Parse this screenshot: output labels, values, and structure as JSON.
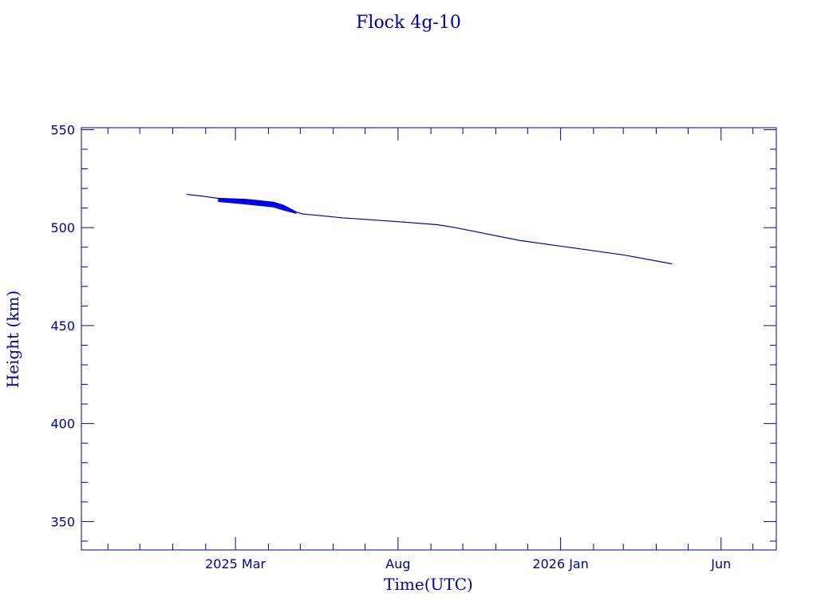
{
  "chart_data": {
    "type": "line",
    "title": "Flock 4g-10",
    "xlabel": "Time(UTC)",
    "ylabel": "Height (km)",
    "x_units": "days since 2025-03-01",
    "xlim": [
      -145,
      509
    ],
    "ylim": [
      335.5,
      551
    ],
    "yticks": [
      350,
      400,
      450,
      500,
      550
    ],
    "ytick_labels": [
      "350",
      "400",
      "450",
      "500",
      "550"
    ],
    "xticks": [
      0,
      153,
      306,
      457
    ],
    "xtick_labels": [
      "2025 Mar",
      "Aug",
      "2026 Jan",
      "Jun"
    ],
    "grid": false,
    "line_color": "#0000a0",
    "band_color": "#0000ff",
    "series": [
      {
        "name": "height",
        "x": [
          -46,
          -30,
          -17,
          10,
          36,
          50,
          57,
          63,
          101,
          154,
          190,
          207,
          230,
          267,
          300,
          320,
          366,
          411
        ],
        "y": [
          517,
          516,
          515,
          514,
          512.5,
          510,
          508,
          507,
          505,
          503,
          501.5,
          500,
          497.5,
          493.5,
          491,
          489.5,
          486,
          481.5
        ]
      }
    ],
    "scatter_band": {
      "x": [
        -16,
        10,
        36,
        45,
        52,
        57
      ],
      "upper": [
        515,
        514.5,
        513,
        511.5,
        509.5,
        508
      ],
      "lower": [
        513.3,
        512,
        510.5,
        509,
        508,
        507.3
      ]
    }
  }
}
